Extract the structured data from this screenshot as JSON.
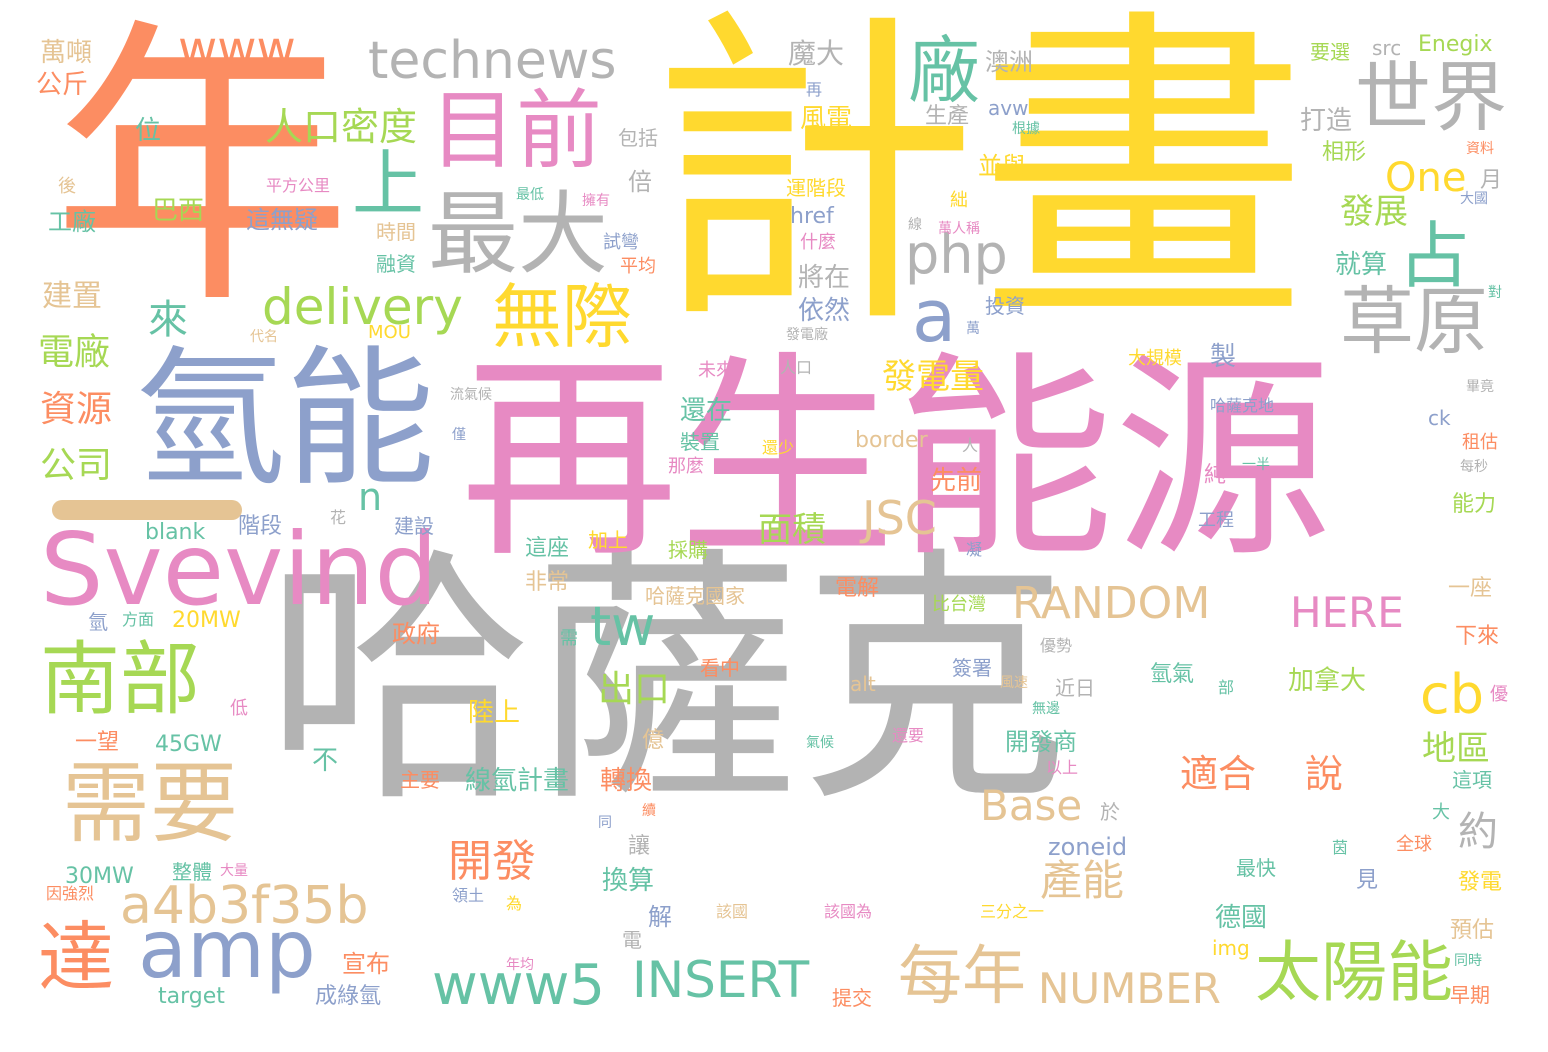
{
  "palette": {
    "orange": "#fc8d62",
    "blue": "#8da0cb",
    "pink": "#e78ac3",
    "green": "#a6d854",
    "yellow": "#ffd92f",
    "tan": "#e5c494",
    "gray": "#b3b3b3",
    "teal": "#66c2a5"
  },
  "words": [
    {
      "text": "哈薩克",
      "color": "gray"
    },
    {
      "text": "計畫",
      "color": "yellow"
    },
    {
      "text": "再生能源",
      "color": "pink"
    },
    {
      "text": "年",
      "color": "orange"
    },
    {
      "text": "氫能",
      "color": "blue"
    },
    {
      "text": "Svevind",
      "color": "pink"
    },
    {
      "text": "technews",
      "color": "gray"
    },
    {
      "text": "www",
      "color": "orange"
    },
    {
      "text": "目前",
      "color": "pink"
    },
    {
      "text": "最大",
      "color": "gray"
    },
    {
      "text": "廠",
      "color": "teal"
    },
    {
      "text": "世界",
      "color": "gray"
    },
    {
      "text": "占",
      "color": "teal"
    },
    {
      "text": "草原",
      "color": "gray"
    },
    {
      "text": "php",
      "color": "gray"
    },
    {
      "text": "a",
      "color": "blue"
    },
    {
      "text": "上",
      "color": "teal"
    },
    {
      "text": "人口密度",
      "color": "green"
    },
    {
      "text": "delivery",
      "color": "green"
    },
    {
      "text": "無際",
      "color": "yellow"
    },
    {
      "text": "南部",
      "color": "green"
    },
    {
      "text": "需要",
      "color": "tan"
    },
    {
      "text": "達",
      "color": "orange"
    },
    {
      "text": "amp",
      "color": "blue"
    },
    {
      "text": "a4b3f35b",
      "color": "tan"
    },
    {
      "text": "www5",
      "color": "teal"
    },
    {
      "text": "INSERT",
      "color": "teal"
    },
    {
      "text": "每年",
      "color": "tan"
    },
    {
      "text": "NUMBER",
      "color": "tan"
    },
    {
      "text": "太陽能",
      "color": "green"
    },
    {
      "text": "RANDOM",
      "color": "tan"
    },
    {
      "text": "HERE",
      "color": "pink"
    },
    {
      "text": "cb",
      "color": "yellow"
    },
    {
      "text": "tw",
      "color": "teal"
    },
    {
      "text": "JSC",
      "color": "tan"
    },
    {
      "text": "Base",
      "color": "tan"
    },
    {
      "text": "適合",
      "color": "orange"
    },
    {
      "text": "說",
      "color": "orange"
    },
    {
      "text": "開發",
      "color": "orange"
    },
    {
      "text": "產能",
      "color": "tan"
    },
    {
      "text": "發展",
      "color": "green"
    },
    {
      "text": "One",
      "color": "yellow"
    },
    {
      "text": "發電量",
      "color": "yellow"
    },
    {
      "text": "面積",
      "color": "green"
    },
    {
      "text": "出口",
      "color": "green"
    },
    {
      "text": "電廠",
      "color": "green"
    },
    {
      "text": "資源",
      "color": "orange"
    },
    {
      "text": "公司",
      "color": "green"
    },
    {
      "text": "來",
      "color": "teal"
    },
    {
      "text": "n",
      "color": "teal"
    },
    {
      "text": "約",
      "color": "gray"
    },
    {
      "text": "地區",
      "color": "green"
    },
    {
      "text": "加拿大",
      "color": "green"
    },
    {
      "text": "陸上",
      "color": "yellow"
    },
    {
      "text": "開發商",
      "color": "teal"
    },
    {
      "text": "線氫計畫",
      "color": "teal"
    },
    {
      "text": "轉換",
      "color": "orange"
    },
    {
      "text": "換算",
      "color": "teal"
    },
    {
      "text": "德國",
      "color": "teal"
    },
    {
      "text": "zoneid",
      "color": "blue"
    },
    {
      "text": "border",
      "color": "tan"
    },
    {
      "text": "先前",
      "color": "orange"
    },
    {
      "text": "還在",
      "color": "teal"
    },
    {
      "text": "依然",
      "color": "blue"
    },
    {
      "text": "將在",
      "color": "gray"
    },
    {
      "text": "就算",
      "color": "teal"
    },
    {
      "text": "建置",
      "color": "tan"
    },
    {
      "text": "巴西",
      "color": "green"
    },
    {
      "text": "工廠",
      "color": "teal"
    },
    {
      "text": "位",
      "color": "teal"
    },
    {
      "text": "萬噸",
      "color": "tan"
    },
    {
      "text": "公斤",
      "color": "orange"
    },
    {
      "text": "包括",
      "color": "gray"
    },
    {
      "text": "倍",
      "color": "gray"
    },
    {
      "text": "魔大",
      "color": "gray"
    },
    {
      "text": "風電",
      "color": "yellow"
    },
    {
      "text": "生產",
      "color": "gray"
    },
    {
      "text": "澳洲",
      "color": "gray"
    },
    {
      "text": "avw",
      "color": "blue"
    },
    {
      "text": "並與",
      "color": "yellow"
    },
    {
      "text": "打造",
      "color": "gray"
    },
    {
      "text": "相形",
      "color": "green"
    },
    {
      "text": "要選",
      "color": "green"
    },
    {
      "text": "src",
      "color": "gray"
    },
    {
      "text": "Enegix",
      "color": "green"
    },
    {
      "text": "月",
      "color": "gray"
    },
    {
      "text": "這無疑",
      "color": "blue"
    },
    {
      "text": "時間",
      "color": "tan"
    },
    {
      "text": "融資",
      "color": "teal"
    },
    {
      "text": "試彎",
      "color": "blue"
    },
    {
      "text": "平均",
      "color": "orange"
    },
    {
      "text": "href",
      "color": "blue"
    },
    {
      "text": "運階段",
      "color": "yellow"
    },
    {
      "text": "什麼",
      "color": "pink"
    },
    {
      "text": "投資",
      "color": "blue"
    },
    {
      "text": "blank",
      "color": "teal"
    },
    {
      "text": "階段",
      "color": "blue"
    },
    {
      "text": "建設",
      "color": "blue"
    },
    {
      "text": "這座",
      "color": "teal"
    },
    {
      "text": "加上",
      "color": "yellow"
    },
    {
      "text": "採購",
      "color": "green"
    },
    {
      "text": "非常",
      "color": "tan"
    },
    {
      "text": "哈薩克國家",
      "color": "tan"
    },
    {
      "text": "電解",
      "color": "orange"
    },
    {
      "text": "比台灣",
      "color": "green"
    },
    {
      "text": "一座",
      "color": "tan"
    },
    {
      "text": "下來",
      "color": "orange"
    },
    {
      "text": "政府",
      "color": "orange"
    },
    {
      "text": "20MW",
      "color": "yellow"
    },
    {
      "text": "45GW",
      "color": "teal"
    },
    {
      "text": "一望",
      "color": "orange"
    },
    {
      "text": "不",
      "color": "teal"
    },
    {
      "text": "主要",
      "color": "orange"
    },
    {
      "text": "30MW",
      "color": "teal"
    },
    {
      "text": "整體",
      "color": "teal"
    },
    {
      "text": "宣布",
      "color": "orange"
    },
    {
      "text": "成綠氫",
      "color": "blue"
    },
    {
      "text": "target",
      "color": "teal"
    },
    {
      "text": "提交",
      "color": "orange"
    },
    {
      "text": "早期",
      "color": "orange"
    },
    {
      "text": "img",
      "color": "yellow"
    },
    {
      "text": "預估",
      "color": "tan"
    },
    {
      "text": "發電",
      "color": "yellow"
    },
    {
      "text": "最快",
      "color": "teal"
    },
    {
      "text": "看中",
      "color": "orange"
    },
    {
      "text": "簽署",
      "color": "blue"
    },
    {
      "text": "近日",
      "color": "gray"
    },
    {
      "text": "氫氣",
      "color": "teal"
    },
    {
      "text": "能力",
      "color": "green"
    },
    {
      "text": "alt",
      "color": "tan"
    },
    {
      "text": "億",
      "color": "tan"
    },
    {
      "text": "於",
      "color": "gray"
    },
    {
      "text": "讓",
      "color": "gray"
    },
    {
      "text": "見",
      "color": "blue"
    },
    {
      "text": "這項",
      "color": "teal"
    },
    {
      "text": "大",
      "color": "teal"
    },
    {
      "text": "全球",
      "color": "orange"
    },
    {
      "text": "解",
      "color": "blue"
    },
    {
      "text": "電",
      "color": "gray"
    },
    {
      "text": "純",
      "color": "pink"
    },
    {
      "text": "製",
      "color": "blue"
    },
    {
      "text": "工程",
      "color": "blue"
    },
    {
      "text": "裝置",
      "color": "teal"
    },
    {
      "text": "那麼",
      "color": "pink"
    },
    {
      "text": "大規模",
      "color": "yellow"
    },
    {
      "text": "未來",
      "color": "pink"
    },
    {
      "text": "MOU",
      "color": "yellow"
    },
    {
      "text": "ck",
      "color": "blue"
    },
    {
      "text": "租估",
      "color": "orange"
    },
    {
      "text": "低",
      "color": "pink"
    },
    {
      "text": "優",
      "color": "pink"
    },
    {
      "text": "氫",
      "color": "blue"
    },
    {
      "text": "方面",
      "color": "teal"
    },
    {
      "text": "代名",
      "color": "tan"
    },
    {
      "text": "花",
      "color": "gray"
    },
    {
      "text": "平方公里",
      "color": "pink"
    },
    {
      "text": "擁有",
      "color": "pink"
    },
    {
      "text": "最低",
      "color": "teal"
    },
    {
      "text": "後",
      "color": "tan"
    },
    {
      "text": "絀",
      "color": "yellow"
    },
    {
      "text": "萬人稱",
      "color": "pink"
    },
    {
      "text": "根據",
      "color": "teal"
    },
    {
      "text": "資料",
      "color": "orange"
    },
    {
      "text": "大國",
      "color": "blue"
    },
    {
      "text": "對",
      "color": "teal"
    },
    {
      "text": "畢竟",
      "color": "gray"
    },
    {
      "text": "每秒",
      "color": "gray"
    },
    {
      "text": "一半",
      "color": "teal"
    },
    {
      "text": "哈薩克地",
      "color": "blue"
    },
    {
      "text": "人口",
      "color": "gray"
    },
    {
      "text": "發電廠",
      "color": "gray"
    },
    {
      "text": "萬",
      "color": "blue"
    },
    {
      "text": "人",
      "color": "gray"
    },
    {
      "text": "還少",
      "color": "yellow"
    },
    {
      "text": "凝",
      "color": "blue"
    },
    {
      "text": "需",
      "color": "teal"
    },
    {
      "text": "優勢",
      "color": "gray"
    },
    {
      "text": "部",
      "color": "teal"
    },
    {
      "text": "風速",
      "color": "tan"
    },
    {
      "text": "無邊",
      "color": "teal"
    },
    {
      "text": "氣候",
      "color": "teal"
    },
    {
      "text": "還要",
      "color": "pink"
    },
    {
      "text": "以上",
      "color": "pink"
    },
    {
      "text": "同",
      "color": "blue"
    },
    {
      "text": "續",
      "color": "orange"
    },
    {
      "text": "領土",
      "color": "blue"
    },
    {
      "text": "為",
      "color": "yellow"
    },
    {
      "text": "該國",
      "color": "tan"
    },
    {
      "text": "該國為",
      "color": "pink"
    },
    {
      "text": "三分之一",
      "color": "yellow"
    },
    {
      "text": "茵",
      "color": "teal"
    },
    {
      "text": "同時",
      "color": "teal"
    },
    {
      "text": "年均",
      "color": "pink"
    },
    {
      "text": "因強烈",
      "color": "orange"
    },
    {
      "text": "大量",
      "color": "pink"
    },
    {
      "text": "再",
      "color": "blue"
    },
    {
      "text": "流氣候",
      "color": "gray"
    },
    {
      "text": "僅",
      "color": "blue"
    },
    {
      "text": "線",
      "color": "gray"
    }
  ]
}
